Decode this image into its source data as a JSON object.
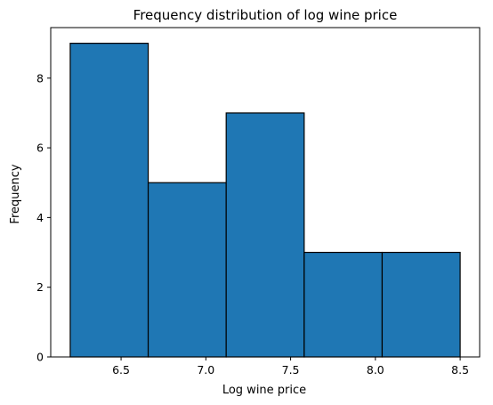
{
  "chart_data": {
    "type": "bar",
    "title": "Frequency distribution of log wine price",
    "xlabel": "Log wine price",
    "ylabel": "Frequency",
    "bins": [
      {
        "x0": 6.2,
        "x1": 6.66,
        "count": 9
      },
      {
        "x0": 6.66,
        "x1": 7.12,
        "count": 5
      },
      {
        "x0": 7.12,
        "x1": 7.58,
        "count": 7
      },
      {
        "x0": 7.58,
        "x1": 8.04,
        "count": 3
      },
      {
        "x0": 8.04,
        "x1": 8.5,
        "count": 3
      }
    ],
    "xlim": [
      6.085,
      8.615
    ],
    "ylim": [
      0,
      9.45
    ],
    "xticks": [
      6.5,
      7.0,
      7.5,
      8.0,
      8.5
    ],
    "xtick_labels": [
      "6.5",
      "7.0",
      "7.5",
      "8.0",
      "8.5"
    ],
    "yticks": [
      0,
      2,
      4,
      6,
      8
    ],
    "ytick_labels": [
      "0",
      "2",
      "4",
      "6",
      "8"
    ],
    "grid": false,
    "colors": {
      "bar_fill": "#1f77b4",
      "bar_edge": "#000000"
    }
  }
}
